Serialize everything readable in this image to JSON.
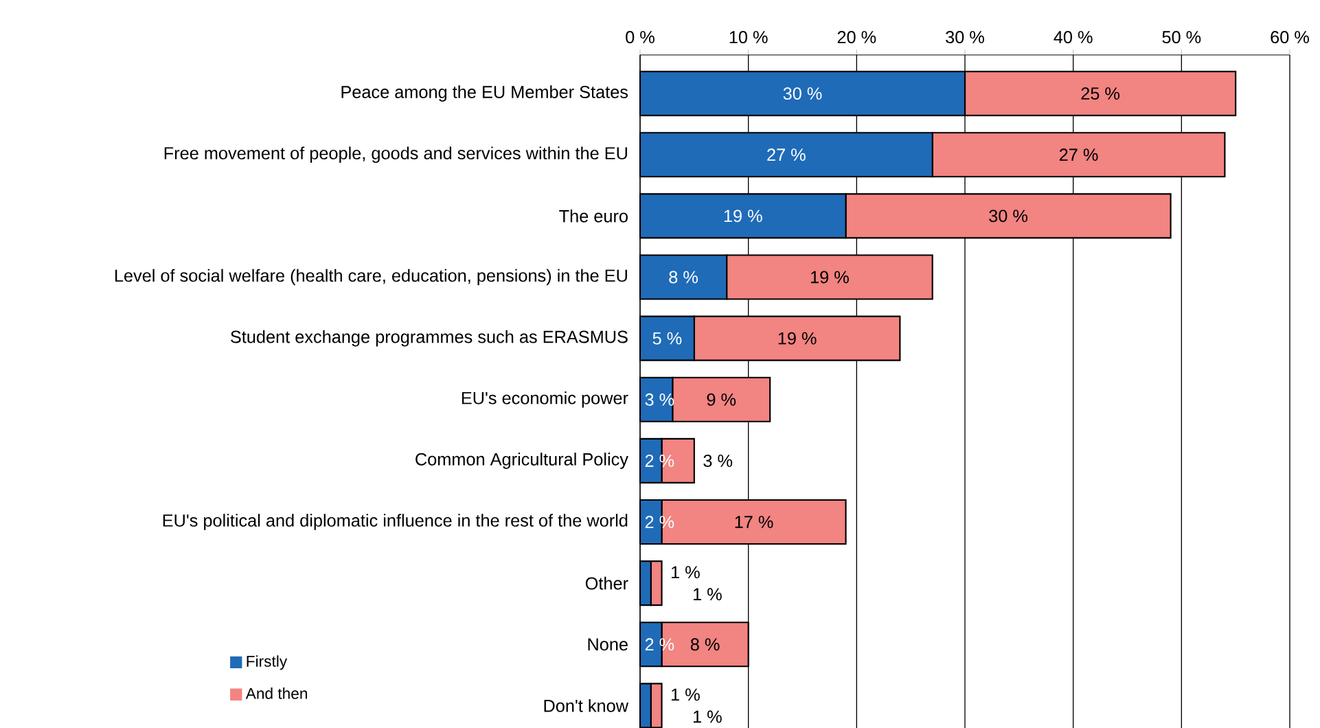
{
  "chart_data": {
    "type": "bar",
    "orientation": "horizontal",
    "stacked": true,
    "categories": [
      "Peace among the EU Member States",
      "Free movement of people, goods and services within the EU",
      "The euro",
      "Level of social welfare (health care, education, pensions) in the EU",
      "Student exchange programmes such as ERASMUS",
      "EU's economic power",
      "Common Agricultural Policy",
      "EU's political and diplomatic influence in the rest of the world",
      "Other",
      "None",
      "Don't know"
    ],
    "series": [
      {
        "name": "Firstly",
        "color": "#1f6bb8",
        "values": [
          30,
          27,
          19,
          8,
          5,
          3,
          2,
          2,
          1,
          2,
          1
        ],
        "value_labels": [
          "30 %",
          "27 %",
          "19 %",
          "8 %",
          "5 %",
          "3 %",
          "2 %",
          "2 %",
          "1 %",
          "2 %",
          "1 %"
        ]
      },
      {
        "name": "And then",
        "color": "#f28482",
        "values": [
          25,
          27,
          30,
          19,
          19,
          9,
          3,
          17,
          1,
          8,
          1
        ],
        "value_labels": [
          "25 %",
          "27 %",
          "30 %",
          "19 %",
          "19 %",
          "9 %",
          "3 %",
          "17 %",
          "1 %",
          "8 %",
          "1 %"
        ]
      }
    ],
    "xlim": [
      0,
      60
    ],
    "xticks": [
      {
        "value": 0,
        "label": "0 %"
      },
      {
        "value": 10,
        "label": "10 %"
      },
      {
        "value": 20,
        "label": "20 %"
      },
      {
        "value": 30,
        "label": "30 %"
      },
      {
        "value": 40,
        "label": "40 %"
      },
      {
        "value": 50,
        "label": "50 %"
      },
      {
        "value": 60,
        "label": "60 %"
      }
    ],
    "grid": "x",
    "legend": "bottom left"
  }
}
